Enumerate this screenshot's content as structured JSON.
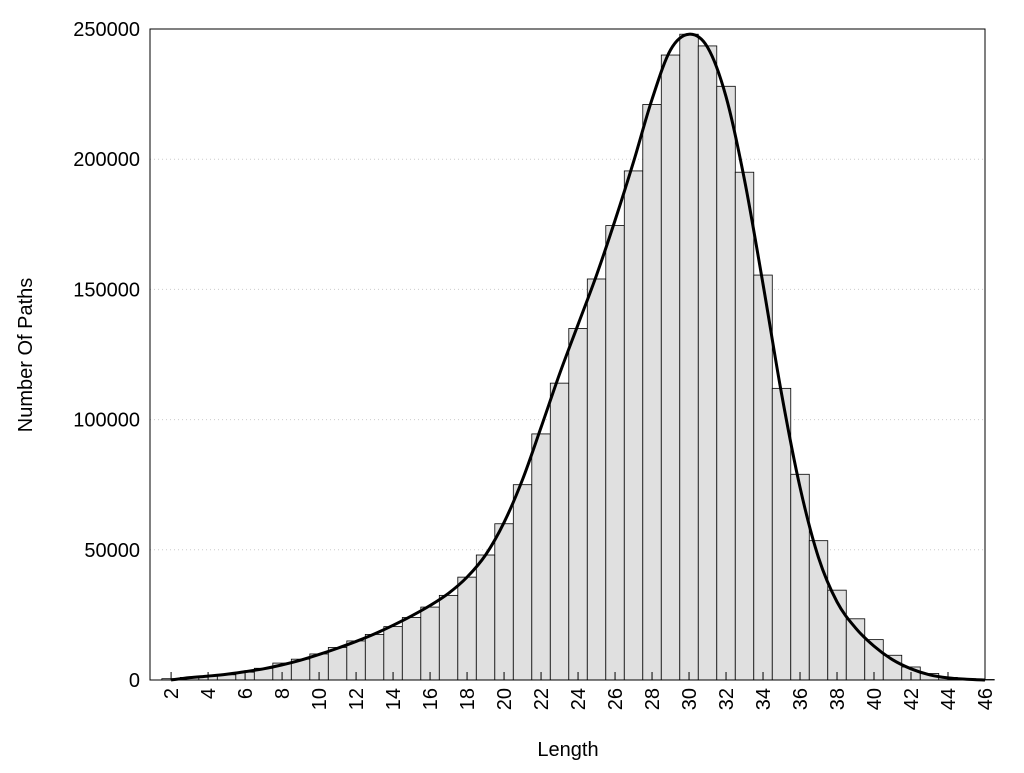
{
  "chart_data": {
    "type": "histogram",
    "xlabel": "Length",
    "ylabel": "Number Of Paths",
    "x": [
      2,
      3,
      4,
      5,
      6,
      7,
      8,
      9,
      10,
      11,
      12,
      13,
      14,
      15,
      16,
      17,
      18,
      19,
      20,
      21,
      22,
      23,
      24,
      25,
      26,
      27,
      28,
      29,
      30,
      31,
      32,
      33,
      34,
      35,
      36,
      37,
      38,
      39,
      40,
      41,
      42,
      43,
      44,
      45,
      46
    ],
    "series": [
      {
        "type": "bar",
        "color": "#e0e0e0",
        "values": [
          500,
          1000,
          1500,
          2000,
          3000,
          4500,
          6500,
          8000,
          10000,
          12500,
          15000,
          17500,
          20500,
          24000,
          28000,
          32500,
          39500,
          48000,
          60000,
          75000,
          94500,
          114000,
          135000,
          154000,
          174500,
          195500,
          221000,
          240000,
          248000,
          243500,
          228000,
          195000,
          155500,
          112000,
          79000,
          53500,
          34500,
          23500,
          15500,
          9500,
          5000,
          2500,
          1000,
          500,
          200
        ]
      },
      {
        "type": "line",
        "color": "#000000",
        "values": [
          0,
          900,
          1500,
          2200,
          3200,
          4300,
          5800,
          7600,
          9800,
          12200,
          14800,
          17700,
          21000,
          24600,
          28600,
          33300,
          39500,
          48000,
          60500,
          77000,
          97000,
          117500,
          136500,
          155500,
          176500,
          199000,
          223000,
          242000,
          248000,
          243000,
          224000,
          192000,
          152000,
          110000,
          74000,
          47000,
          30000,
          20000,
          13000,
          7800,
          4300,
          2000,
          800,
          300,
          0
        ]
      }
    ],
    "xlim": [
      0.86,
      46
    ],
    "xticks": [
      2,
      4,
      6,
      8,
      10,
      12,
      14,
      16,
      18,
      20,
      22,
      24,
      26,
      28,
      30,
      32,
      34,
      36,
      38,
      40,
      42,
      44,
      46
    ],
    "ylim": [
      0,
      250000
    ],
    "yticks": [
      0,
      50000,
      100000,
      150000,
      200000,
      250000
    ],
    "grid": true
  }
}
